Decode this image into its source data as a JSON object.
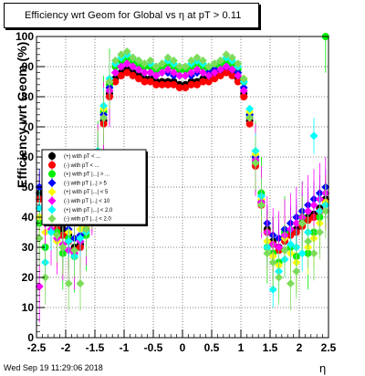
{
  "title": "Efficiency wrt Geom for Global vs    η at pT > 0.11",
  "footer": "Wed Sep 19 11:29:06 2018",
  "chart_data": {
    "type": "scatter",
    "title": "Efficiency wrt Geom for Global vs    η at pT > 0.11",
    "xlabel": "η",
    "ylabel": "Efficiency wrt Geom (%)",
    "xlim": [
      -2.5,
      2.5
    ],
    "ylim": [
      0,
      100
    ],
    "x_ticks": [
      "-2.5",
      "-2",
      "-1.5",
      "-1",
      "-0.5",
      "0",
      "0.5",
      "1",
      "1.5",
      "2",
      "2.5"
    ],
    "y_ticks": [
      "0",
      "10",
      "20",
      "30",
      "40",
      "50",
      "60",
      "70",
      "80",
      "90",
      "100"
    ],
    "grid": true,
    "legend_position": "left-middle",
    "series": [
      {
        "name": "(+) with pT < ...",
        "color": "#000000",
        "marker": "circle",
        "x": [
          -2.45,
          -2.35,
          -2.25,
          -2.15,
          -2.05,
          -1.95,
          -1.85,
          -1.75,
          -1.65,
          -1.55,
          -1.45,
          -1.35,
          -1.25,
          -1.15,
          -1.05,
          -0.95,
          -0.85,
          -0.75,
          -0.65,
          -0.55,
          -0.45,
          -0.35,
          -0.25,
          -0.15,
          -0.05,
          0.05,
          0.15,
          0.25,
          0.35,
          0.45,
          0.55,
          0.65,
          0.75,
          0.85,
          0.95,
          1.05,
          1.15,
          1.25,
          1.35,
          1.45,
          1.55,
          1.65,
          1.75,
          1.85,
          1.95,
          2.05,
          2.15,
          2.25,
          2.35,
          2.45
        ],
        "y": [
          48,
          42,
          40,
          38,
          36,
          34,
          30,
          31,
          36,
          45,
          58,
          72,
          81,
          86,
          88,
          89,
          88,
          87,
          86,
          86,
          85,
          85,
          85,
          85,
          84,
          84,
          85,
          85,
          86,
          86,
          87,
          88,
          89,
          88,
          86,
          81,
          72,
          58,
          45,
          36,
          32,
          30,
          33,
          35,
          36,
          38,
          40,
          41,
          43,
          46
        ]
      },
      {
        "name": "(-) with pT < ...",
        "color": "#ff0000",
        "marker": "circle",
        "x": [
          -2.45,
          -2.35,
          -2.25,
          -2.15,
          -2.05,
          -1.95,
          -1.85,
          -1.75,
          -1.65,
          -1.55,
          -1.45,
          -1.35,
          -1.25,
          -1.15,
          -1.05,
          -0.95,
          -0.85,
          -0.75,
          -0.65,
          -0.55,
          -0.45,
          -0.35,
          -0.25,
          -0.15,
          -0.05,
          0.05,
          0.15,
          0.25,
          0.35,
          0.45,
          0.55,
          0.65,
          0.75,
          0.85,
          0.95,
          1.05,
          1.15,
          1.25,
          1.35,
          1.45,
          1.55,
          1.65,
          1.75,
          1.85,
          1.95,
          2.05,
          2.15,
          2.25,
          2.35,
          2.45
        ],
        "y": [
          46,
          40,
          38,
          36,
          34,
          32,
          29,
          30,
          35,
          44,
          57,
          71,
          80,
          85,
          87,
          88,
          87,
          86,
          85,
          85,
          84,
          84,
          84,
          84,
          83,
          83,
          84,
          84,
          85,
          85,
          86,
          87,
          88,
          87,
          85,
          80,
          71,
          57,
          44,
          35,
          31,
          29,
          32,
          34,
          35,
          37,
          39,
          40,
          42,
          45
        ]
      },
      {
        "name": "(+) with pT |...| > ...",
        "color": "#00ee00",
        "marker": "circle",
        "x": [
          -2.45,
          -2.35,
          -2.25,
          -2.15,
          -2.05,
          -1.95,
          -1.85,
          -1.75,
          -1.65,
          -1.55,
          -1.45,
          -1.35,
          -1.25,
          -1.15,
          -1.05,
          -0.95,
          -0.85,
          -0.75,
          -0.65,
          -0.55,
          -0.45,
          -0.35,
          -0.25,
          -0.15,
          -0.05,
          0.05,
          0.15,
          0.25,
          0.35,
          0.45,
          0.55,
          0.65,
          0.75,
          0.85,
          0.95,
          1.05,
          1.15,
          1.25,
          1.35,
          1.45,
          1.55,
          1.65,
          1.75,
          1.85,
          1.95,
          2.05,
          2.15,
          2.25,
          2.35,
          2.45
        ],
        "y": [
          38,
          30,
          42,
          35,
          28,
          33,
          27,
          38,
          34,
          50,
          60,
          75,
          84,
          90,
          92,
          93,
          92,
          91,
          90,
          90,
          89,
          90,
          91,
          90,
          89,
          89,
          90,
          91,
          90,
          89,
          90,
          91,
          92,
          91,
          89,
          85,
          74,
          60,
          48,
          30,
          28,
          25,
          35,
          30,
          27,
          40,
          28,
          35,
          40,
          100
        ]
      },
      {
        "name": "(-) with pT |...| > 5",
        "color": "#0000ff",
        "marker": "diamond",
        "x": [
          -2.45,
          -2.35,
          -2.25,
          -2.15,
          -2.05,
          -1.95,
          -1.85,
          -1.75,
          -1.65,
          -1.55,
          -1.45,
          -1.35,
          -1.25,
          -1.15,
          -1.05,
          -0.95,
          -0.85,
          -0.75,
          -0.65,
          -0.55,
          -0.45,
          -0.35,
          -0.25,
          -0.15,
          -0.05,
          0.05,
          0.15,
          0.25,
          0.35,
          0.45,
          0.55,
          0.65,
          0.75,
          0.85,
          0.95,
          1.05,
          1.15,
          1.25,
          1.35,
          1.45,
          1.55,
          1.65,
          1.75,
          1.85,
          1.95,
          2.05,
          2.15,
          2.25,
          2.35,
          2.45
        ],
        "y": [
          50,
          44,
          42,
          40,
          38,
          36,
          33,
          34,
          38,
          47,
          60,
          74,
          83,
          88,
          90,
          91,
          90,
          89,
          88,
          88,
          87,
          88,
          88,
          87,
          87,
          87,
          87,
          88,
          88,
          88,
          89,
          89,
          90,
          89,
          88,
          83,
          74,
          60,
          47,
          38,
          34,
          33,
          36,
          38,
          40,
          42,
          44,
          46,
          48,
          50
        ]
      },
      {
        "name": "(+) with pT |...| < 5",
        "color": "#ffff00",
        "marker": "diamond",
        "x": [
          -2.45,
          -2.35,
          -2.25,
          -2.15,
          -2.05,
          -1.95,
          -1.85,
          -1.75,
          -1.65,
          -1.55,
          -1.45,
          -1.35,
          -1.25,
          -1.15,
          -1.05,
          -0.95,
          -0.85,
          -0.75,
          -0.65,
          -0.55,
          -0.45,
          -0.35,
          -0.25,
          -0.15,
          -0.05,
          0.05,
          0.15,
          0.25,
          0.35,
          0.45,
          0.55,
          0.65,
          0.75,
          0.85,
          0.95,
          1.05,
          1.15,
          1.25,
          1.35,
          1.45,
          1.55,
          1.65,
          1.75,
          1.85,
          1.95,
          2.05,
          2.15,
          2.25,
          2.35,
          2.45
        ],
        "y": [
          40,
          35,
          45,
          32,
          30,
          35,
          28,
          36,
          37,
          48,
          61,
          76,
          85,
          91,
          93,
          94,
          93,
          92,
          91,
          91,
          90,
          91,
          92,
          91,
          90,
          90,
          91,
          92,
          91,
          90,
          91,
          92,
          93,
          92,
          90,
          86,
          75,
          61,
          46,
          32,
          27,
          24,
          33,
          28,
          25,
          38,
          30,
          33,
          38,
          45
        ]
      },
      {
        "name": "(-) with pT |...| < 10",
        "color": "#ff00ff",
        "marker": "diamond",
        "x": [
          -2.45,
          -2.35,
          -2.25,
          -2.15,
          -2.05,
          -1.95,
          -1.85,
          -1.75,
          -1.65,
          -1.55,
          -1.45,
          -1.35,
          -1.25,
          -1.15,
          -1.05,
          -0.95,
          -0.85,
          -0.75,
          -0.65,
          -0.55,
          -0.45,
          -0.35,
          -0.25,
          -0.15,
          -0.05,
          0.05,
          0.15,
          0.25,
          0.35,
          0.45,
          0.55,
          0.65,
          0.75,
          0.85,
          0.95,
          1.05,
          1.15,
          1.25,
          1.35,
          1.45,
          1.55,
          1.65,
          1.75,
          1.85,
          1.95,
          2.05,
          2.15,
          2.25,
          2.35,
          2.45
        ],
        "y": [
          17,
          38,
          36,
          33,
          31,
          29,
          28,
          32,
          36,
          46,
          59,
          73,
          82,
          88,
          90,
          91,
          90,
          89,
          88,
          88,
          87,
          88,
          89,
          88,
          87,
          87,
          88,
          89,
          88,
          87,
          88,
          89,
          90,
          89,
          87,
          82,
          73,
          59,
          45,
          35,
          31,
          30,
          34,
          36,
          38,
          40,
          42,
          44,
          46,
          48
        ]
      },
      {
        "name": "(+) with pT |...| < 2.0",
        "color": "#00ffff",
        "marker": "diamond",
        "x": [
          -2.45,
          -2.35,
          -2.25,
          -2.15,
          -2.05,
          -1.95,
          -1.85,
          -1.75,
          -1.65,
          -1.55,
          -1.45,
          -1.35,
          -1.25,
          -1.15,
          -1.05,
          -0.95,
          -0.85,
          -0.75,
          -0.65,
          -0.55,
          -0.45,
          -0.35,
          -0.25,
          -0.15,
          -0.05,
          0.05,
          0.15,
          0.25,
          0.35,
          0.45,
          0.55,
          0.65,
          0.75,
          0.85,
          0.95,
          1.05,
          1.15,
          1.25,
          1.35,
          1.45,
          1.55,
          1.65,
          1.75,
          1.85,
          1.95,
          2.05,
          2.15,
          2.25,
          2.35,
          2.45
        ],
        "y": [
          43,
          25,
          35,
          38,
          30,
          32,
          27,
          33,
          35,
          47,
          62,
          77,
          86,
          91,
          93,
          94,
          93,
          92,
          91,
          91,
          90,
          91,
          92,
          91,
          90,
          90,
          91,
          92,
          91,
          90,
          91,
          92,
          93,
          92,
          90,
          85,
          76,
          62,
          47,
          30,
          16,
          22,
          26,
          31,
          30,
          28,
          35,
          67,
          42,
          44
        ]
      },
      {
        "name": "(-) with pT |...| < 2.0",
        "color": "#7cdc5a",
        "marker": "diamond",
        "x": [
          -2.45,
          -2.35,
          -2.25,
          -2.15,
          -2.05,
          -1.95,
          -1.85,
          -1.75,
          -1.65,
          -1.55,
          -1.45,
          -1.35,
          -1.25,
          -1.15,
          -1.05,
          -0.95,
          -0.85,
          -0.75,
          -0.65,
          -0.55,
          -0.45,
          -0.35,
          -0.25,
          -0.15,
          -0.05,
          0.05,
          0.15,
          0.25,
          0.35,
          0.45,
          0.55,
          0.65,
          0.75,
          0.85,
          0.95,
          1.05,
          1.15,
          1.25,
          1.35,
          1.45,
          1.55,
          1.65,
          1.75,
          1.85,
          1.95,
          2.05,
          2.15,
          2.25,
          2.35,
          2.45
        ],
        "y": [
          33,
          20,
          48,
          34,
          30,
          18,
          29,
          18,
          36,
          45,
          60,
          73,
          85,
          92,
          94,
          95,
          93,
          92,
          91,
          92,
          90,
          91,
          93,
          92,
          90,
          90,
          92,
          93,
          92,
          90,
          91,
          92,
          94,
          93,
          91,
          86,
          73,
          58,
          44,
          28,
          25,
          20,
          29,
          18,
          22,
          38,
          32,
          28,
          35,
          42
        ]
      }
    ]
  }
}
